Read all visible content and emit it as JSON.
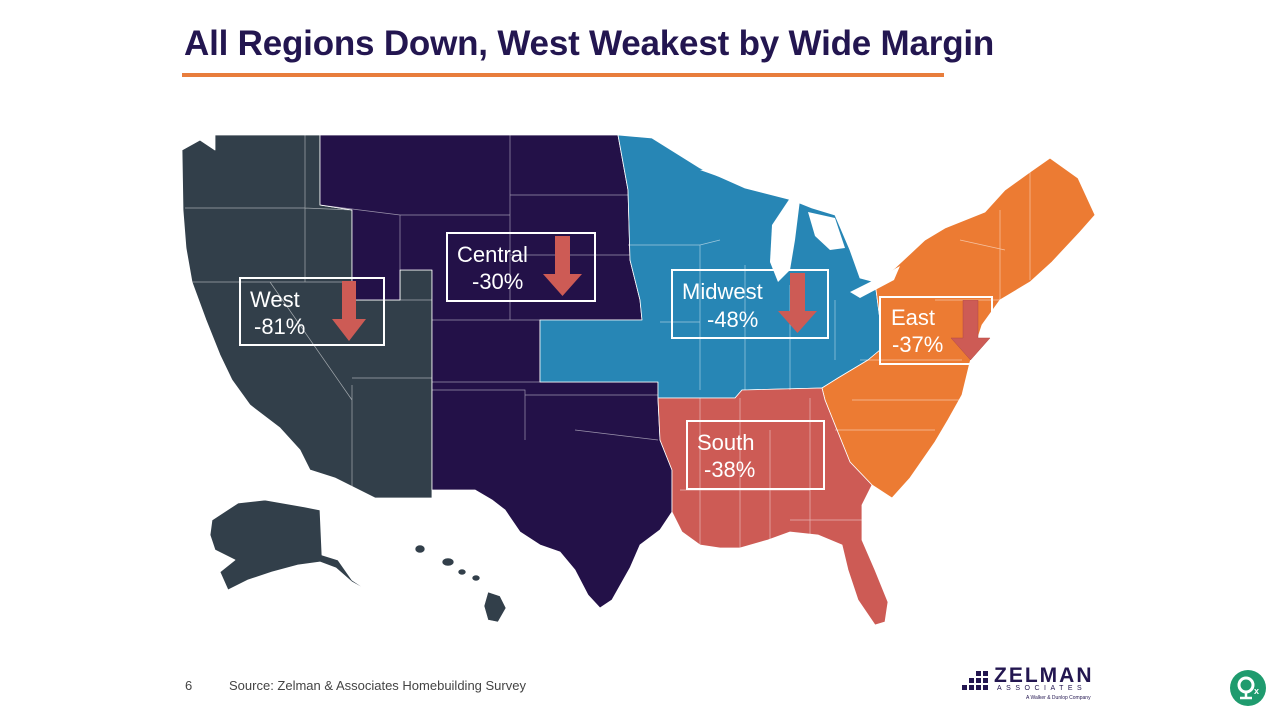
{
  "slide": {
    "title": "All Regions Down, West Weakest by Wide Margin",
    "page_number": "6",
    "source": "Source: Zelman & Associates Homebuilding Survey"
  },
  "regions": [
    {
      "id": "west",
      "name": "West",
      "change": "-81%",
      "color": "#323f4a"
    },
    {
      "id": "central",
      "name": "Central",
      "change": "-30%",
      "color": "#231148"
    },
    {
      "id": "midwest",
      "name": "Midwest",
      "change": "-48%",
      "color": "#2786b5"
    },
    {
      "id": "east",
      "name": "East",
      "change": "-37%",
      "color": "#ec7b33"
    },
    {
      "id": "south",
      "name": "South",
      "change": "-38%",
      "color": "#cd5b55"
    }
  ],
  "colors": {
    "title": "#231650",
    "title_rule": "#e87d3c",
    "arrow": "#cd5b55",
    "callout_border": "#ffffff"
  },
  "logo": {
    "name": "ZELMAN",
    "subtitle": "ASSOCIATES",
    "tagline": "A Walker & Dunlop Company"
  },
  "badge_icon": "app-badge-icon"
}
